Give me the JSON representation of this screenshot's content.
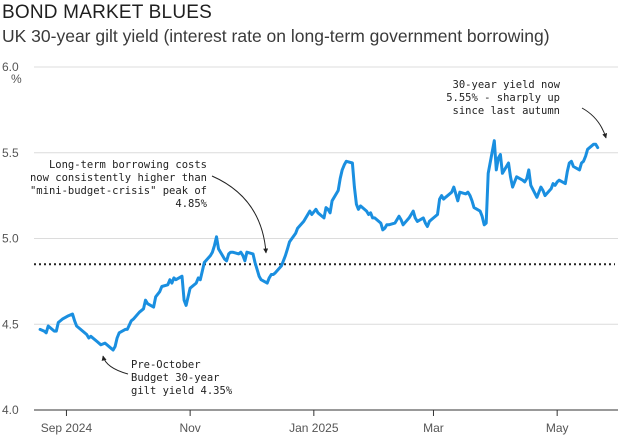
{
  "header": {
    "title": "BOND MARKET BLUES",
    "subtitle": "UK 30-year gilt yield (interest rate on long-term government borrowing)"
  },
  "chart_data": {
    "type": "line",
    "title": "BOND MARKET BLUES",
    "subtitle": "UK 30-year gilt yield (interest rate on long-term government borrowing)",
    "xlabel": "",
    "ylabel": "%",
    "ylim": [
      4.0,
      6.0
    ],
    "yticks": [
      4.0,
      4.5,
      5.0,
      5.5,
      6.0
    ],
    "ytick_labels": [
      "4.0",
      "4.5",
      "5.0",
      "5.5",
      "6.0"
    ],
    "xticks": [
      {
        "date": "2024-09-01",
        "label": "Sep 2024"
      },
      {
        "date": "2024-11-01",
        "label": "Nov"
      },
      {
        "date": "2025-01-01",
        "label": "Jan 2025"
      },
      {
        "date": "2025-03-01",
        "label": "Mar"
      },
      {
        "date": "2025-05-01",
        "label": "May"
      }
    ],
    "xlim": [
      "2024-08-16",
      "2025-05-31"
    ],
    "grid": "horizontal",
    "line_color": "#1a8fe0",
    "reference_line": {
      "value": 4.85,
      "style": "dotted",
      "color": "#222222"
    },
    "series": [
      {
        "values": [
          {
            "x": "2024-08-19",
            "y": 4.47
          },
          {
            "x": "2024-08-21",
            "y": 4.46
          },
          {
            "x": "2024-08-22",
            "y": 4.45
          },
          {
            "x": "2024-08-23",
            "y": 4.49
          },
          {
            "x": "2024-08-26",
            "y": 4.46
          },
          {
            "x": "2024-08-27",
            "y": 4.46
          },
          {
            "x": "2024-08-28",
            "y": 4.51
          },
          {
            "x": "2024-08-30",
            "y": 4.53
          },
          {
            "x": "2024-09-02",
            "y": 4.55
          },
          {
            "x": "2024-09-04",
            "y": 4.56
          },
          {
            "x": "2024-09-05",
            "y": 4.52
          },
          {
            "x": "2024-09-06",
            "y": 4.49
          },
          {
            "x": "2024-09-09",
            "y": 4.46
          },
          {
            "x": "2024-09-11",
            "y": 4.44
          },
          {
            "x": "2024-09-12",
            "y": 4.42
          },
          {
            "x": "2024-09-13",
            "y": 4.43
          },
          {
            "x": "2024-09-16",
            "y": 4.4
          },
          {
            "x": "2024-09-18",
            "y": 4.38
          },
          {
            "x": "2024-09-20",
            "y": 4.39
          },
          {
            "x": "2024-09-23",
            "y": 4.36
          },
          {
            "x": "2024-09-24",
            "y": 4.35
          },
          {
            "x": "2024-09-25",
            "y": 4.37
          },
          {
            "x": "2024-09-26",
            "y": 4.42
          },
          {
            "x": "2024-09-27",
            "y": 4.45
          },
          {
            "x": "2024-09-30",
            "y": 4.47
          },
          {
            "x": "2024-10-01",
            "y": 4.47
          },
          {
            "x": "2024-10-03",
            "y": 4.52
          },
          {
            "x": "2024-10-04",
            "y": 4.53
          },
          {
            "x": "2024-10-07",
            "y": 4.57
          },
          {
            "x": "2024-10-09",
            "y": 4.59
          },
          {
            "x": "2024-10-10",
            "y": 4.64
          },
          {
            "x": "2024-10-11",
            "y": 4.62
          },
          {
            "x": "2024-10-14",
            "y": 4.6
          },
          {
            "x": "2024-10-15",
            "y": 4.66
          },
          {
            "x": "2024-10-17",
            "y": 4.69
          },
          {
            "x": "2024-10-18",
            "y": 4.72
          },
          {
            "x": "2024-10-21",
            "y": 4.73
          },
          {
            "x": "2024-10-22",
            "y": 4.76
          },
          {
            "x": "2024-10-23",
            "y": 4.74
          },
          {
            "x": "2024-10-24",
            "y": 4.77
          },
          {
            "x": "2024-10-25",
            "y": 4.76
          },
          {
            "x": "2024-10-28",
            "y": 4.78
          },
          {
            "x": "2024-10-29",
            "y": 4.64
          },
          {
            "x": "2024-10-30",
            "y": 4.61
          },
          {
            "x": "2024-10-31",
            "y": 4.66
          },
          {
            "x": "2024-11-01",
            "y": 4.71
          },
          {
            "x": "2024-11-04",
            "y": 4.74
          },
          {
            "x": "2024-11-05",
            "y": 4.77
          },
          {
            "x": "2024-11-06",
            "y": 4.76
          },
          {
            "x": "2024-11-07",
            "y": 4.81
          },
          {
            "x": "2024-11-08",
            "y": 4.86
          },
          {
            "x": "2024-11-11",
            "y": 4.9
          },
          {
            "x": "2024-11-12",
            "y": 4.92
          },
          {
            "x": "2024-11-13",
            "y": 4.96
          },
          {
            "x": "2024-11-14",
            "y": 5.01
          },
          {
            "x": "2024-11-15",
            "y": 4.94
          },
          {
            "x": "2024-11-18",
            "y": 4.88
          },
          {
            "x": "2024-11-19",
            "y": 4.87
          },
          {
            "x": "2024-11-20",
            "y": 4.91
          },
          {
            "x": "2024-11-21",
            "y": 4.92
          },
          {
            "x": "2024-11-22",
            "y": 4.92
          },
          {
            "x": "2024-11-25",
            "y": 4.91
          },
          {
            "x": "2024-11-26",
            "y": 4.92
          },
          {
            "x": "2024-11-27",
            "y": 4.9
          },
          {
            "x": "2024-11-28",
            "y": 4.87
          },
          {
            "x": "2024-11-29",
            "y": 4.92
          },
          {
            "x": "2024-12-02",
            "y": 4.91
          },
          {
            "x": "2024-12-03",
            "y": 4.86
          },
          {
            "x": "2024-12-04",
            "y": 4.82
          },
          {
            "x": "2024-12-05",
            "y": 4.78
          },
          {
            "x": "2024-12-06",
            "y": 4.76
          },
          {
            "x": "2024-12-09",
            "y": 4.74
          },
          {
            "x": "2024-12-10",
            "y": 4.77
          },
          {
            "x": "2024-12-11",
            "y": 4.79
          },
          {
            "x": "2024-12-12",
            "y": 4.79
          },
          {
            "x": "2024-12-13",
            "y": 4.8
          },
          {
            "x": "2024-12-16",
            "y": 4.84
          },
          {
            "x": "2024-12-17",
            "y": 4.87
          },
          {
            "x": "2024-12-18",
            "y": 4.9
          },
          {
            "x": "2024-12-19",
            "y": 4.94
          },
          {
            "x": "2024-12-20",
            "y": 4.98
          },
          {
            "x": "2024-12-23",
            "y": 5.03
          },
          {
            "x": "2024-12-24",
            "y": 5.06
          },
          {
            "x": "2024-12-27",
            "y": 5.1
          },
          {
            "x": "2024-12-30",
            "y": 5.16
          },
          {
            "x": "2024-12-31",
            "y": 5.14
          },
          {
            "x": "2025-01-02",
            "y": 5.17
          },
          {
            "x": "2025-01-03",
            "y": 5.15
          },
          {
            "x": "2025-01-06",
            "y": 5.12
          },
          {
            "x": "2025-01-07",
            "y": 5.18
          },
          {
            "x": "2025-01-08",
            "y": 5.17
          },
          {
            "x": "2025-01-09",
            "y": 5.15
          },
          {
            "x": "2025-01-10",
            "y": 5.22
          },
          {
            "x": "2025-01-13",
            "y": 5.28
          },
          {
            "x": "2025-01-14",
            "y": 5.35
          },
          {
            "x": "2025-01-15",
            "y": 5.4
          },
          {
            "x": "2025-01-16",
            "y": 5.43
          },
          {
            "x": "2025-01-17",
            "y": 5.45
          },
          {
            "x": "2025-01-20",
            "y": 5.44
          },
          {
            "x": "2025-01-21",
            "y": 5.3
          },
          {
            "x": "2025-01-22",
            "y": 5.2
          },
          {
            "x": "2025-01-23",
            "y": 5.17
          },
          {
            "x": "2025-01-24",
            "y": 5.19
          },
          {
            "x": "2025-01-27",
            "y": 5.16
          },
          {
            "x": "2025-01-28",
            "y": 5.14
          },
          {
            "x": "2025-01-29",
            "y": 5.15
          },
          {
            "x": "2025-01-30",
            "y": 5.12
          },
          {
            "x": "2025-01-31",
            "y": 5.12
          },
          {
            "x": "2025-02-03",
            "y": 5.09
          },
          {
            "x": "2025-02-04",
            "y": 5.05
          },
          {
            "x": "2025-02-05",
            "y": 5.06
          },
          {
            "x": "2025-02-06",
            "y": 5.08
          },
          {
            "x": "2025-02-07",
            "y": 5.08
          },
          {
            "x": "2025-02-10",
            "y": 5.09
          },
          {
            "x": "2025-02-11",
            "y": 5.11
          },
          {
            "x": "2025-02-12",
            "y": 5.13
          },
          {
            "x": "2025-02-13",
            "y": 5.11
          },
          {
            "x": "2025-02-14",
            "y": 5.08
          },
          {
            "x": "2025-02-17",
            "y": 5.12
          },
          {
            "x": "2025-02-18",
            "y": 5.14
          },
          {
            "x": "2025-02-19",
            "y": 5.16
          },
          {
            "x": "2025-02-20",
            "y": 5.12
          },
          {
            "x": "2025-02-21",
            "y": 5.1
          },
          {
            "x": "2025-02-24",
            "y": 5.12
          },
          {
            "x": "2025-02-25",
            "y": 5.09
          },
          {
            "x": "2025-02-26",
            "y": 5.07
          },
          {
            "x": "2025-02-27",
            "y": 5.1
          },
          {
            "x": "2025-02-28",
            "y": 5.11
          },
          {
            "x": "2025-03-03",
            "y": 5.14
          },
          {
            "x": "2025-03-04",
            "y": 5.23
          },
          {
            "x": "2025-03-05",
            "y": 5.25
          },
          {
            "x": "2025-03-06",
            "y": 5.23
          },
          {
            "x": "2025-03-07",
            "y": 5.24
          },
          {
            "x": "2025-03-10",
            "y": 5.27
          },
          {
            "x": "2025-03-11",
            "y": 5.3
          },
          {
            "x": "2025-03-12",
            "y": 5.26
          },
          {
            "x": "2025-03-13",
            "y": 5.22
          },
          {
            "x": "2025-03-14",
            "y": 5.27
          },
          {
            "x": "2025-03-17",
            "y": 5.26
          },
          {
            "x": "2025-03-18",
            "y": 5.27
          },
          {
            "x": "2025-03-19",
            "y": 5.25
          },
          {
            "x": "2025-03-20",
            "y": 5.22
          },
          {
            "x": "2025-03-21",
            "y": 5.18
          },
          {
            "x": "2025-03-24",
            "y": 5.16
          },
          {
            "x": "2025-03-25",
            "y": 5.13
          },
          {
            "x": "2025-03-26",
            "y": 5.08
          },
          {
            "x": "2025-03-27",
            "y": 5.09
          },
          {
            "x": "2025-03-28",
            "y": 5.38
          },
          {
            "x": "2025-03-31",
            "y": 5.57
          },
          {
            "x": "2025-04-01",
            "y": 5.4
          },
          {
            "x": "2025-04-02",
            "y": 5.47
          },
          {
            "x": "2025-04-03",
            "y": 5.49
          },
          {
            "x": "2025-04-04",
            "y": 5.38
          },
          {
            "x": "2025-04-07",
            "y": 5.44
          },
          {
            "x": "2025-04-08",
            "y": 5.36
          },
          {
            "x": "2025-04-09",
            "y": 5.3
          },
          {
            "x": "2025-04-10",
            "y": 5.33
          },
          {
            "x": "2025-04-11",
            "y": 5.36
          },
          {
            "x": "2025-04-14",
            "y": 5.34
          },
          {
            "x": "2025-04-15",
            "y": 5.33
          },
          {
            "x": "2025-04-16",
            "y": 5.35
          },
          {
            "x": "2025-04-17",
            "y": 5.4
          },
          {
            "x": "2025-04-18",
            "y": 5.31
          },
          {
            "x": "2025-04-21",
            "y": 5.24
          },
          {
            "x": "2025-04-22",
            "y": 5.27
          },
          {
            "x": "2025-04-23",
            "y": 5.3
          },
          {
            "x": "2025-04-24",
            "y": 5.28
          },
          {
            "x": "2025-04-25",
            "y": 5.25
          },
          {
            "x": "2025-04-28",
            "y": 5.29
          },
          {
            "x": "2025-04-29",
            "y": 5.32
          },
          {
            "x": "2025-04-30",
            "y": 5.31
          },
          {
            "x": "2025-05-01",
            "y": 5.33
          },
          {
            "x": "2025-05-02",
            "y": 5.34
          },
          {
            "x": "2025-05-05",
            "y": 5.32
          },
          {
            "x": "2025-05-06",
            "y": 5.39
          },
          {
            "x": "2025-05-07",
            "y": 5.44
          },
          {
            "x": "2025-05-08",
            "y": 5.45
          },
          {
            "x": "2025-05-09",
            "y": 5.42
          },
          {
            "x": "2025-05-12",
            "y": 5.4
          },
          {
            "x": "2025-05-13",
            "y": 5.44
          },
          {
            "x": "2025-05-14",
            "y": 5.45
          },
          {
            "x": "2025-05-15",
            "y": 5.48
          },
          {
            "x": "2025-05-16",
            "y": 5.52
          },
          {
            "x": "2025-05-19",
            "y": 5.55
          },
          {
            "x": "2025-05-20",
            "y": 5.55
          },
          {
            "x": "2025-05-21",
            "y": 5.53
          }
        ]
      }
    ],
    "annotations": [
      {
        "id": "pre-october",
        "lines": [
          "Pre-October",
          "Budget 30-year",
          "gilt yield 4.35%"
        ]
      },
      {
        "id": "long-term",
        "lines": [
          "Long-term borrowing costs",
          "now consistently higher than",
          "\"mini-budget-crisis\" peak of",
          "4.85%"
        ]
      },
      {
        "id": "thirty-year",
        "lines": [
          "30-year yield now",
          "5.55% - sharply up",
          "since last autumn"
        ]
      }
    ]
  }
}
